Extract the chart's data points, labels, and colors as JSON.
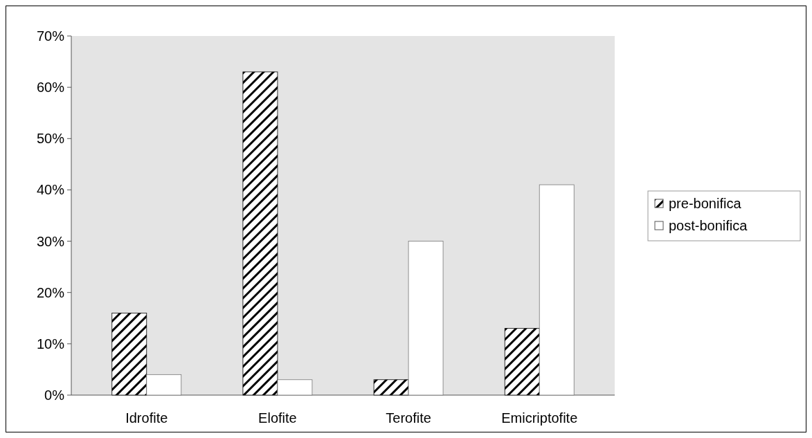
{
  "chart_data": {
    "type": "bar",
    "categories": [
      "Idrofite",
      "Elofite",
      "Terofite",
      "Emicriptofite"
    ],
    "series": [
      {
        "name": "pre-bonifica",
        "color": "#000000",
        "values": [
          16,
          63,
          3,
          13
        ]
      },
      {
        "name": "post-bonifica",
        "color": "#ffffff",
        "values": [
          4,
          3,
          30,
          41
        ]
      }
    ],
    "ylim": [
      0,
      70
    ],
    "yticks": [
      {
        "value": 0,
        "label": "0%"
      },
      {
        "value": 10,
        "label": "10%"
      },
      {
        "value": 20,
        "label": "20%"
      },
      {
        "value": 30,
        "label": "30%"
      },
      {
        "value": 40,
        "label": "40%"
      },
      {
        "value": 50,
        "label": "50%"
      },
      {
        "value": 60,
        "label": "60%"
      },
      {
        "value": 70,
        "label": "70%"
      }
    ],
    "legend": "right",
    "grid": false
  }
}
